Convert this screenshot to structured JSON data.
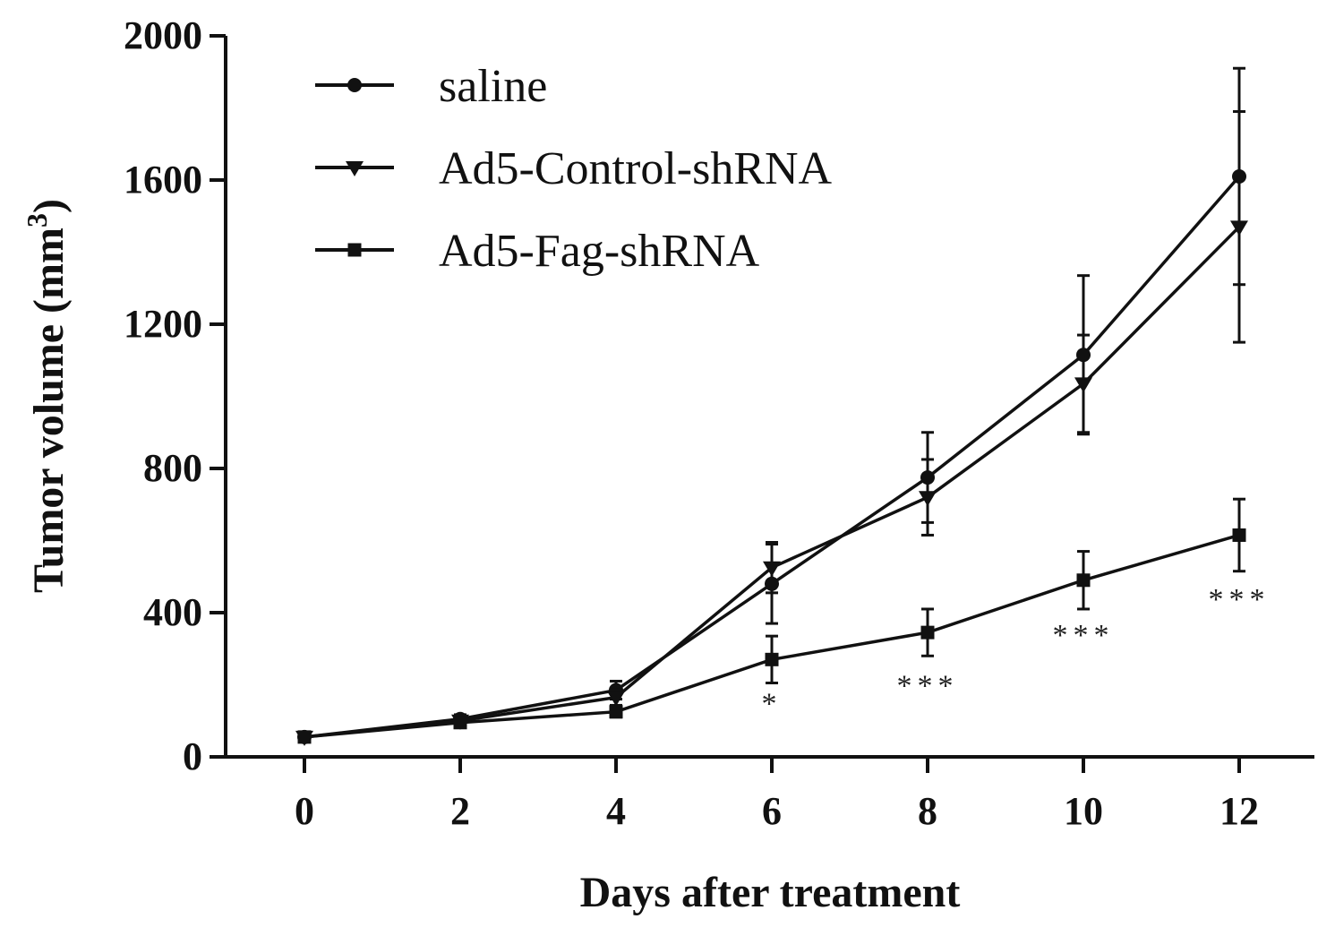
{
  "chart_data": {
    "type": "line",
    "title": "",
    "xlabel": "Days after treatment",
    "ylabel": "Tumor volume (mm",
    "ylabel_superscript": "3",
    "ylabel_close": ")",
    "x": [
      0,
      2,
      4,
      6,
      8,
      10,
      12
    ],
    "xlim": [
      -1,
      13
    ],
    "ylim": [
      0,
      2000
    ],
    "xticks": [
      "0",
      "2",
      "4",
      "6",
      "8",
      "10",
      "12"
    ],
    "yticks": [
      "0",
      "400",
      "800",
      "1200",
      "1600",
      "2000"
    ],
    "grid": false,
    "legend_position": "top-left",
    "series": [
      {
        "name": "saline",
        "marker": "circle",
        "color": "#111111",
        "values": [
          55,
          105,
          185,
          480,
          775,
          1115,
          1610
        ],
        "errors": [
          0,
          12,
          25,
          110,
          125,
          220,
          300
        ]
      },
      {
        "name": "Ad5-Control-shRNA",
        "marker": "triangle-down",
        "color": "#111111",
        "values": [
          55,
          100,
          165,
          525,
          720,
          1035,
          1470
        ],
        "errors": [
          0,
          10,
          22,
          70,
          105,
          135,
          320
        ]
      },
      {
        "name": "Ad5-Fag-shRNA",
        "marker": "square",
        "color": "#111111",
        "values": [
          55,
          95,
          125,
          270,
          345,
          490,
          615
        ],
        "errors": [
          0,
          10,
          15,
          65,
          65,
          80,
          100
        ]
      }
    ],
    "annotations": [
      {
        "x": 6,
        "y": 150,
        "text": "*"
      },
      {
        "x": 8,
        "y": 200,
        "text": "***"
      },
      {
        "x": 10,
        "y": 340,
        "text": "***"
      },
      {
        "x": 12,
        "y": 440,
        "text": "***"
      }
    ]
  }
}
